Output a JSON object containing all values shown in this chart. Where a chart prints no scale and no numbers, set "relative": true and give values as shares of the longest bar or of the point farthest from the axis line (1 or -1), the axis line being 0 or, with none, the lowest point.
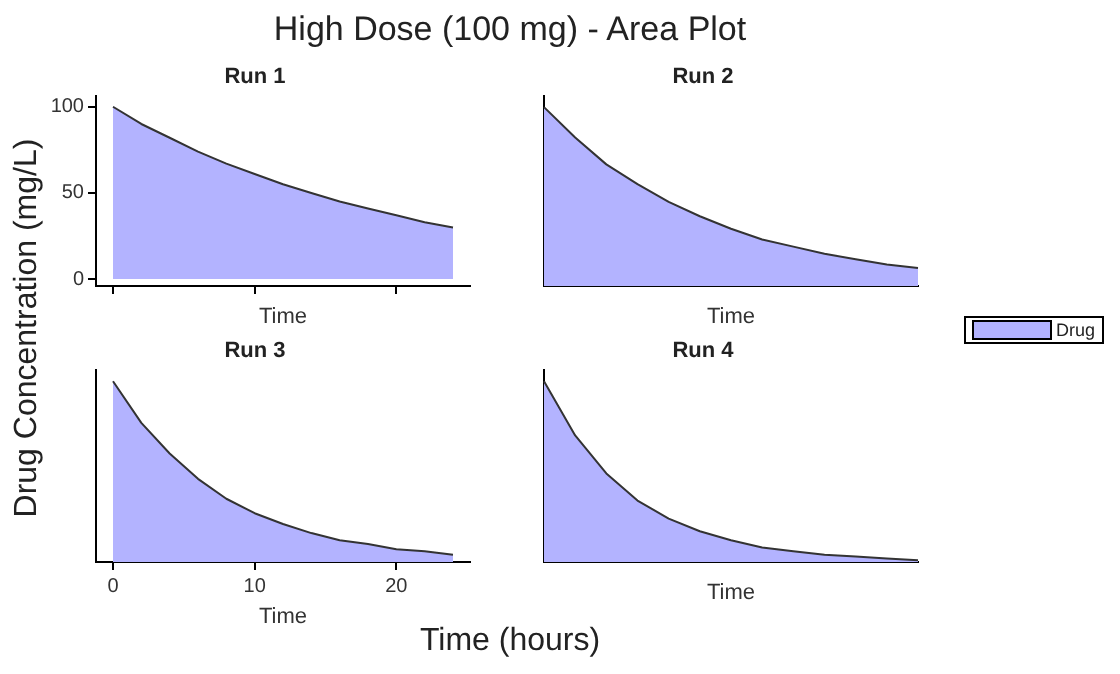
{
  "chart_data": [
    {
      "type": "area",
      "title": "Run 1",
      "xlabel": "Time",
      "x": [
        0,
        2,
        4,
        6,
        8,
        10,
        12,
        14,
        16,
        18,
        20,
        22,
        24
      ],
      "xlim": [
        -1.2,
        25.2
      ],
      "xticks": [
        0,
        10,
        20
      ],
      "ylim": [
        -4,
        106
      ],
      "yticks": [
        0,
        50,
        100
      ],
      "tick_labels": "y",
      "series": [
        {
          "color": "#b3b3ff",
          "values": [
            100,
            90,
            82,
            74,
            67,
            61,
            55,
            50,
            45,
            41,
            37,
            33,
            30
          ]
        }
      ]
    },
    {
      "type": "area",
      "title": "Run 2",
      "xlabel": "Time",
      "categories": [
        null,
        null,
        null,
        null,
        null,
        null,
        null,
        null,
        null,
        null,
        null,
        null,
        null
      ],
      "relative": true,
      "tick_labels": false,
      "legend": "right",
      "series": [
        {
          "name": "Drug",
          "color": "#b3b3ff",
          "values": [
            1,
            0.83,
            0.68,
            0.57,
            0.47,
            0.39,
            0.32,
            0.26,
            0.22,
            0.18,
            0.15,
            0.12,
            0.1
          ]
        }
      ]
    },
    {
      "type": "area",
      "title": "Run 3",
      "xlabel": "Time",
      "x": [
        0,
        2,
        4,
        6,
        8,
        10,
        12,
        14,
        16,
        18,
        20,
        22,
        24
      ],
      "xlim": [
        -1.2,
        25.2
      ],
      "xticks": [
        0,
        10,
        20
      ],
      "relative": true,
      "tick_labels": "x",
      "series": [
        {
          "color": "#b3b3ff",
          "values": [
            1,
            0.77,
            0.6,
            0.46,
            0.35,
            0.27,
            0.21,
            0.16,
            0.12,
            0.1,
            0.07,
            0.06,
            0.04
          ]
        }
      ]
    },
    {
      "type": "area",
      "title": "Run 4",
      "xlabel": "Time",
      "categories": [
        null,
        null,
        null,
        null,
        null,
        null,
        null,
        null,
        null,
        null,
        null,
        null,
        null
      ],
      "relative": true,
      "tick_labels": false,
      "series": [
        {
          "color": "#b3b3ff",
          "values": [
            1,
            0.7,
            0.49,
            0.34,
            0.24,
            0.17,
            0.12,
            0.08,
            0.06,
            0.04,
            0.03,
            0.02,
            0.01
          ]
        }
      ]
    },
    {
      "type": "other",
      "title": "High Dose (100 mg) - Area Plot",
      "xlabel": "Time (hours)",
      "ylabel": "Drug Concentration (mg/L)"
    }
  ]
}
